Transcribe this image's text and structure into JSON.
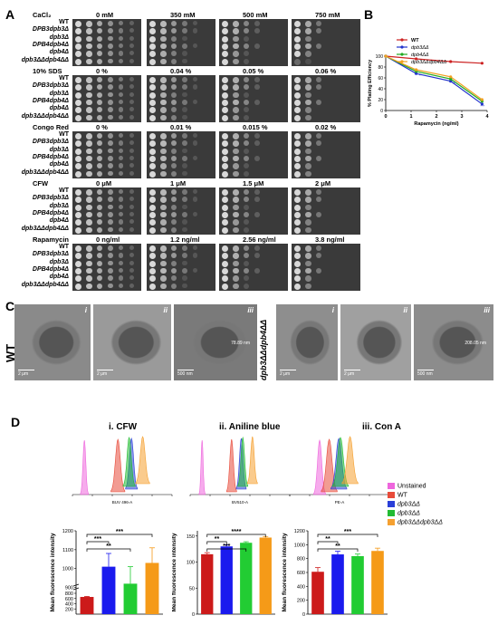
{
  "panels": {
    "A": "A",
    "B": "B",
    "C": "C",
    "D": "D"
  },
  "panelA": {
    "strains": [
      "WT",
      "DPB3dpb3Δ",
      "dpb3Δ",
      "DPB4dpb4Δ",
      "dpb4Δ",
      "dpb3ΔΔdpb4ΔΔ"
    ],
    "conditions": [
      {
        "name": "CaCl₂",
        "levels": [
          "0 mM",
          "350 mM",
          "500 mM",
          "750 mM"
        ]
      },
      {
        "name": "10% SDS",
        "levels": [
          "0 %",
          "0.04 %",
          "0.05 %",
          "0.06 %"
        ]
      },
      {
        "name": "Congo Red",
        "levels": [
          "0 %",
          "0.01 %",
          "0.015 %",
          "0.02 %"
        ]
      },
      {
        "name": "CFW",
        "levels": [
          "0 μM",
          "1 μM",
          "1.5 μM",
          "2 μM"
        ]
      },
      {
        "name": "Rapamycin",
        "levels": [
          "0 ng/ml",
          "1.2 ng/ml",
          "2.56 ng/ml",
          "3.8 ng/ml"
        ]
      }
    ]
  },
  "panelC": {
    "wt_label": "WT",
    "mut_label": "dpb3ΔΔdpb4ΔΔ",
    "sub": [
      "i",
      "ii",
      "iii"
    ],
    "wt_scale": [
      "2 μm",
      "2 μm",
      "500 nm"
    ],
    "mut_scale": [
      "2 μm",
      "2 μm",
      "500 nm"
    ],
    "wt_annot": "78.89 nm",
    "mut_annot": "208.05 nm"
  },
  "panelD": {
    "titles": [
      "i. CFW",
      "ii. Aniline blue",
      "iii. Con A"
    ],
    "hist_xlabels": [
      "BUV 496-A",
      "BV510-A",
      "PE-A"
    ],
    "legend": [
      {
        "label": "Unstained",
        "color": "#ee66dd"
      },
      {
        "label": "WT",
        "color": "#e84b3a"
      },
      {
        "label": "dpb3ΔΔ",
        "color": "#2a3fd8"
      },
      {
        "label": "dpb3ΔΔ",
        "color": "#22bb33"
      },
      {
        "label": "dpb3ΔΔdpb3ΔΔ",
        "color": "#f5a030"
      }
    ],
    "ylabel": "Mean fluorescence intensity"
  },
  "chart_data": [
    {
      "type": "line",
      "xlabel": "Rapamycin (ng/ml)",
      "ylabel": "% Plating Efficiency",
      "xlim": [
        0,
        4
      ],
      "ylim": [
        0,
        100
      ],
      "xticks": [
        0,
        1,
        2,
        3,
        4
      ],
      "yticks": [
        0,
        20,
        40,
        60,
        80,
        100
      ],
      "x": [
        0,
        1.2,
        2.56,
        3.8
      ],
      "legend_position": "top-right",
      "series": [
        {
          "name": "WT",
          "color": "#cc2222",
          "values": [
            100,
            95,
            90,
            87
          ]
        },
        {
          "name": "dpb3ΔΔ",
          "color": "#2233cc",
          "values": [
            100,
            68,
            54,
            12
          ]
        },
        {
          "name": "dpb4ΔΔ",
          "color": "#22aa22",
          "values": [
            100,
            72,
            58,
            17
          ]
        },
        {
          "name": "dpb3ΔΔdpb4ΔΔ",
          "color": "#f0a020",
          "values": [
            100,
            75,
            62,
            20
          ]
        }
      ],
      "annotations": [
        "**",
        "**",
        "***"
      ]
    },
    {
      "type": "bar",
      "ylabel": "Mean fluorescence intensity",
      "ylim": [
        0,
        1200
      ],
      "ybreak": [
        800,
        900
      ],
      "yticks": [
        0,
        200,
        400,
        600,
        800,
        900,
        1000,
        1100,
        1200
      ],
      "values": [
        660,
        1010,
        920,
        1030
      ],
      "errors": [
        20,
        70,
        90,
        80
      ],
      "colors": [
        "#cc1a1a",
        "#1a1aee",
        "#22cc33",
        "#f59a18"
      ],
      "significance": [
        "***",
        "**",
        "***"
      ]
    },
    {
      "type": "bar",
      "ylabel": "Mean fluorescence intensity",
      "ylim": [
        0,
        160
      ],
      "yticks": [
        0,
        50,
        100,
        150
      ],
      "values": [
        115,
        130,
        137,
        147
      ],
      "errors": [
        3,
        3,
        2,
        2
      ],
      "colors": [
        "#cc1a1a",
        "#1a1aee",
        "#22cc33",
        "#f59a18"
      ],
      "significance": [
        "**",
        "***",
        "****"
      ]
    },
    {
      "type": "bar",
      "ylabel": "Mean fluorescence intensity",
      "ylim": [
        0,
        1200
      ],
      "yticks": [
        0,
        200,
        400,
        600,
        800,
        1000,
        1200
      ],
      "values": [
        610,
        860,
        835,
        910
      ],
      "errors": [
        60,
        45,
        30,
        40
      ],
      "colors": [
        "#cc1a1a",
        "#1a1aee",
        "#22cc33",
        "#f59a18"
      ],
      "significance": [
        "**",
        "**",
        "***"
      ]
    }
  ]
}
